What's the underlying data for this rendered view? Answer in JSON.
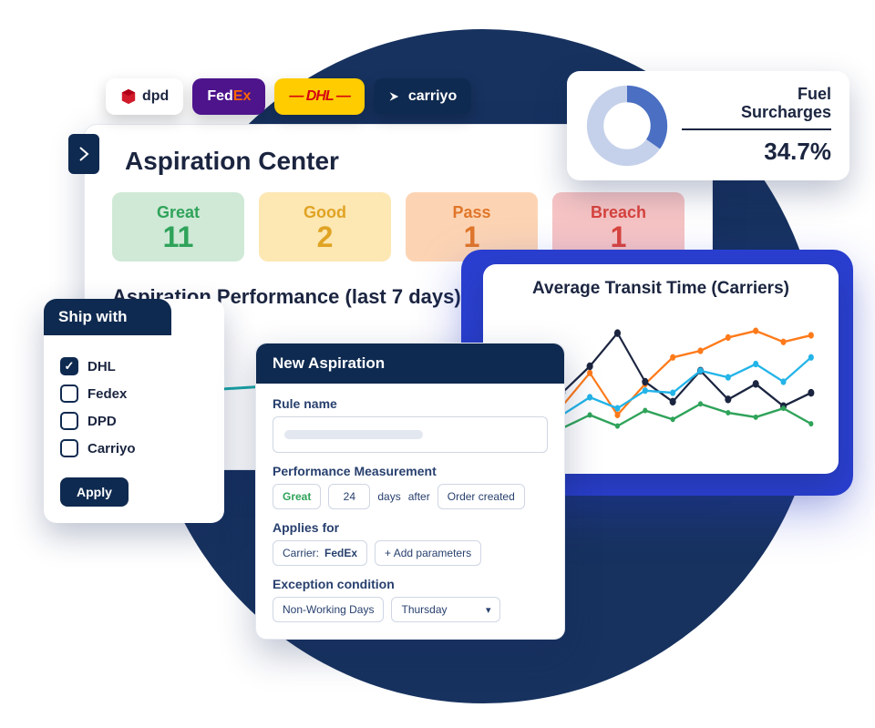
{
  "carriers": [
    {
      "name": "dpd",
      "bg": "#ffffff",
      "fg": "#1b2540",
      "icon_color": "#d11a2a"
    },
    {
      "name": "FedEx",
      "bg": "#4d148c",
      "fg": "#ffffff",
      "accent": "#ff6600"
    },
    {
      "name": "DHL",
      "bg": "#ffcc00",
      "fg": "#d40511",
      "italic": true
    },
    {
      "name": "carriyo",
      "bg": "#0f2a50",
      "fg": "#ffffff"
    }
  ],
  "main": {
    "title": "Aspiration Center",
    "stats": [
      {
        "label": "Great",
        "value": "11",
        "bg": "#cfe9d6",
        "fg": "#2fa35a"
      },
      {
        "label": "Good",
        "value": "2",
        "bg": "#fde7b3",
        "fg": "#e0a323"
      },
      {
        "label": "Pass",
        "value": "1",
        "bg": "#fdd4b3",
        "fg": "#e0762a"
      },
      {
        "label": "Breach",
        "value": "1",
        "bg": "#f6c4c4",
        "fg": "#d9433d"
      }
    ],
    "perf_title": "Aspiration Performance (last 7 days)",
    "perf_line": {
      "color": "#1aa7a7",
      "width": 3,
      "points": [
        [
          0,
          72
        ],
        [
          60,
          60
        ],
        [
          140,
          66
        ],
        [
          230,
          60
        ],
        [
          330,
          50
        ],
        [
          440,
          38
        ],
        [
          560,
          38
        ],
        [
          640,
          26
        ]
      ]
    }
  },
  "fuel": {
    "title_l1": "Fuel",
    "title_l2": "Surcharges",
    "value": "34.7%",
    "donut": {
      "pct": 0.347,
      "fg": "#4a6fc3",
      "bg": "#c5d1ea",
      "thickness": 20
    }
  },
  "transit": {
    "title": "Average Transit Time (Carriers)",
    "xrange": [
      0,
      340
    ],
    "yrange": [
      0,
      130
    ],
    "series": [
      {
        "color": "#ff7a1a",
        "width": 2,
        "marker": 3,
        "pts": [
          [
            8,
            108
          ],
          [
            38,
            70
          ],
          [
            68,
            92
          ],
          [
            98,
            62
          ],
          [
            128,
            100
          ],
          [
            158,
            72
          ],
          [
            188,
            48
          ],
          [
            218,
            42
          ],
          [
            248,
            30
          ],
          [
            278,
            24
          ],
          [
            308,
            34
          ],
          [
            338,
            28
          ]
        ]
      },
      {
        "color": "#1b2540",
        "width": 2,
        "marker": 3.5,
        "pts": [
          [
            8,
            94
          ],
          [
            38,
            98
          ],
          [
            68,
            80
          ],
          [
            98,
            56
          ],
          [
            128,
            26
          ],
          [
            158,
            70
          ],
          [
            188,
            88
          ],
          [
            218,
            60
          ],
          [
            248,
            86
          ],
          [
            278,
            72
          ],
          [
            308,
            92
          ],
          [
            338,
            80
          ]
        ]
      },
      {
        "color": "#23b4e8",
        "width": 2,
        "marker": 3,
        "pts": [
          [
            8,
            112
          ],
          [
            38,
            90
          ],
          [
            68,
            100
          ],
          [
            98,
            84
          ],
          [
            128,
            94
          ],
          [
            158,
            78
          ],
          [
            188,
            80
          ],
          [
            218,
            60
          ],
          [
            248,
            66
          ],
          [
            278,
            54
          ],
          [
            308,
            70
          ],
          [
            338,
            48
          ]
        ]
      },
      {
        "color": "#2fa35a",
        "width": 2,
        "marker": 2.5,
        "pts": [
          [
            8,
            118
          ],
          [
            38,
            106
          ],
          [
            68,
            112
          ],
          [
            98,
            100
          ],
          [
            128,
            110
          ],
          [
            158,
            96
          ],
          [
            188,
            104
          ],
          [
            218,
            90
          ],
          [
            248,
            98
          ],
          [
            278,
            102
          ],
          [
            308,
            94
          ],
          [
            338,
            108
          ]
        ]
      }
    ]
  },
  "filter": {
    "title": "Ship with",
    "options": [
      {
        "label": "DHL",
        "checked": true
      },
      {
        "label": "Fedex",
        "checked": false
      },
      {
        "label": "DPD",
        "checked": false
      },
      {
        "label": "Carriyo",
        "checked": false
      }
    ],
    "apply_label": "Apply"
  },
  "form": {
    "title": "New Aspiration",
    "rule_label": "Rule name",
    "perf_label": "Performance Measurement",
    "perf_quality": "Great",
    "perf_days": "24",
    "perf_days_unit": "days",
    "perf_after": "after",
    "perf_event": "Order created",
    "applies_label": "Applies for",
    "applies_chip_key": "Carrier:",
    "applies_chip_val": "FedEx",
    "applies_add": "+ Add parameters",
    "exception_label": "Exception condition",
    "exception_type": "Non-Working Days",
    "exception_value": "Thursday"
  }
}
